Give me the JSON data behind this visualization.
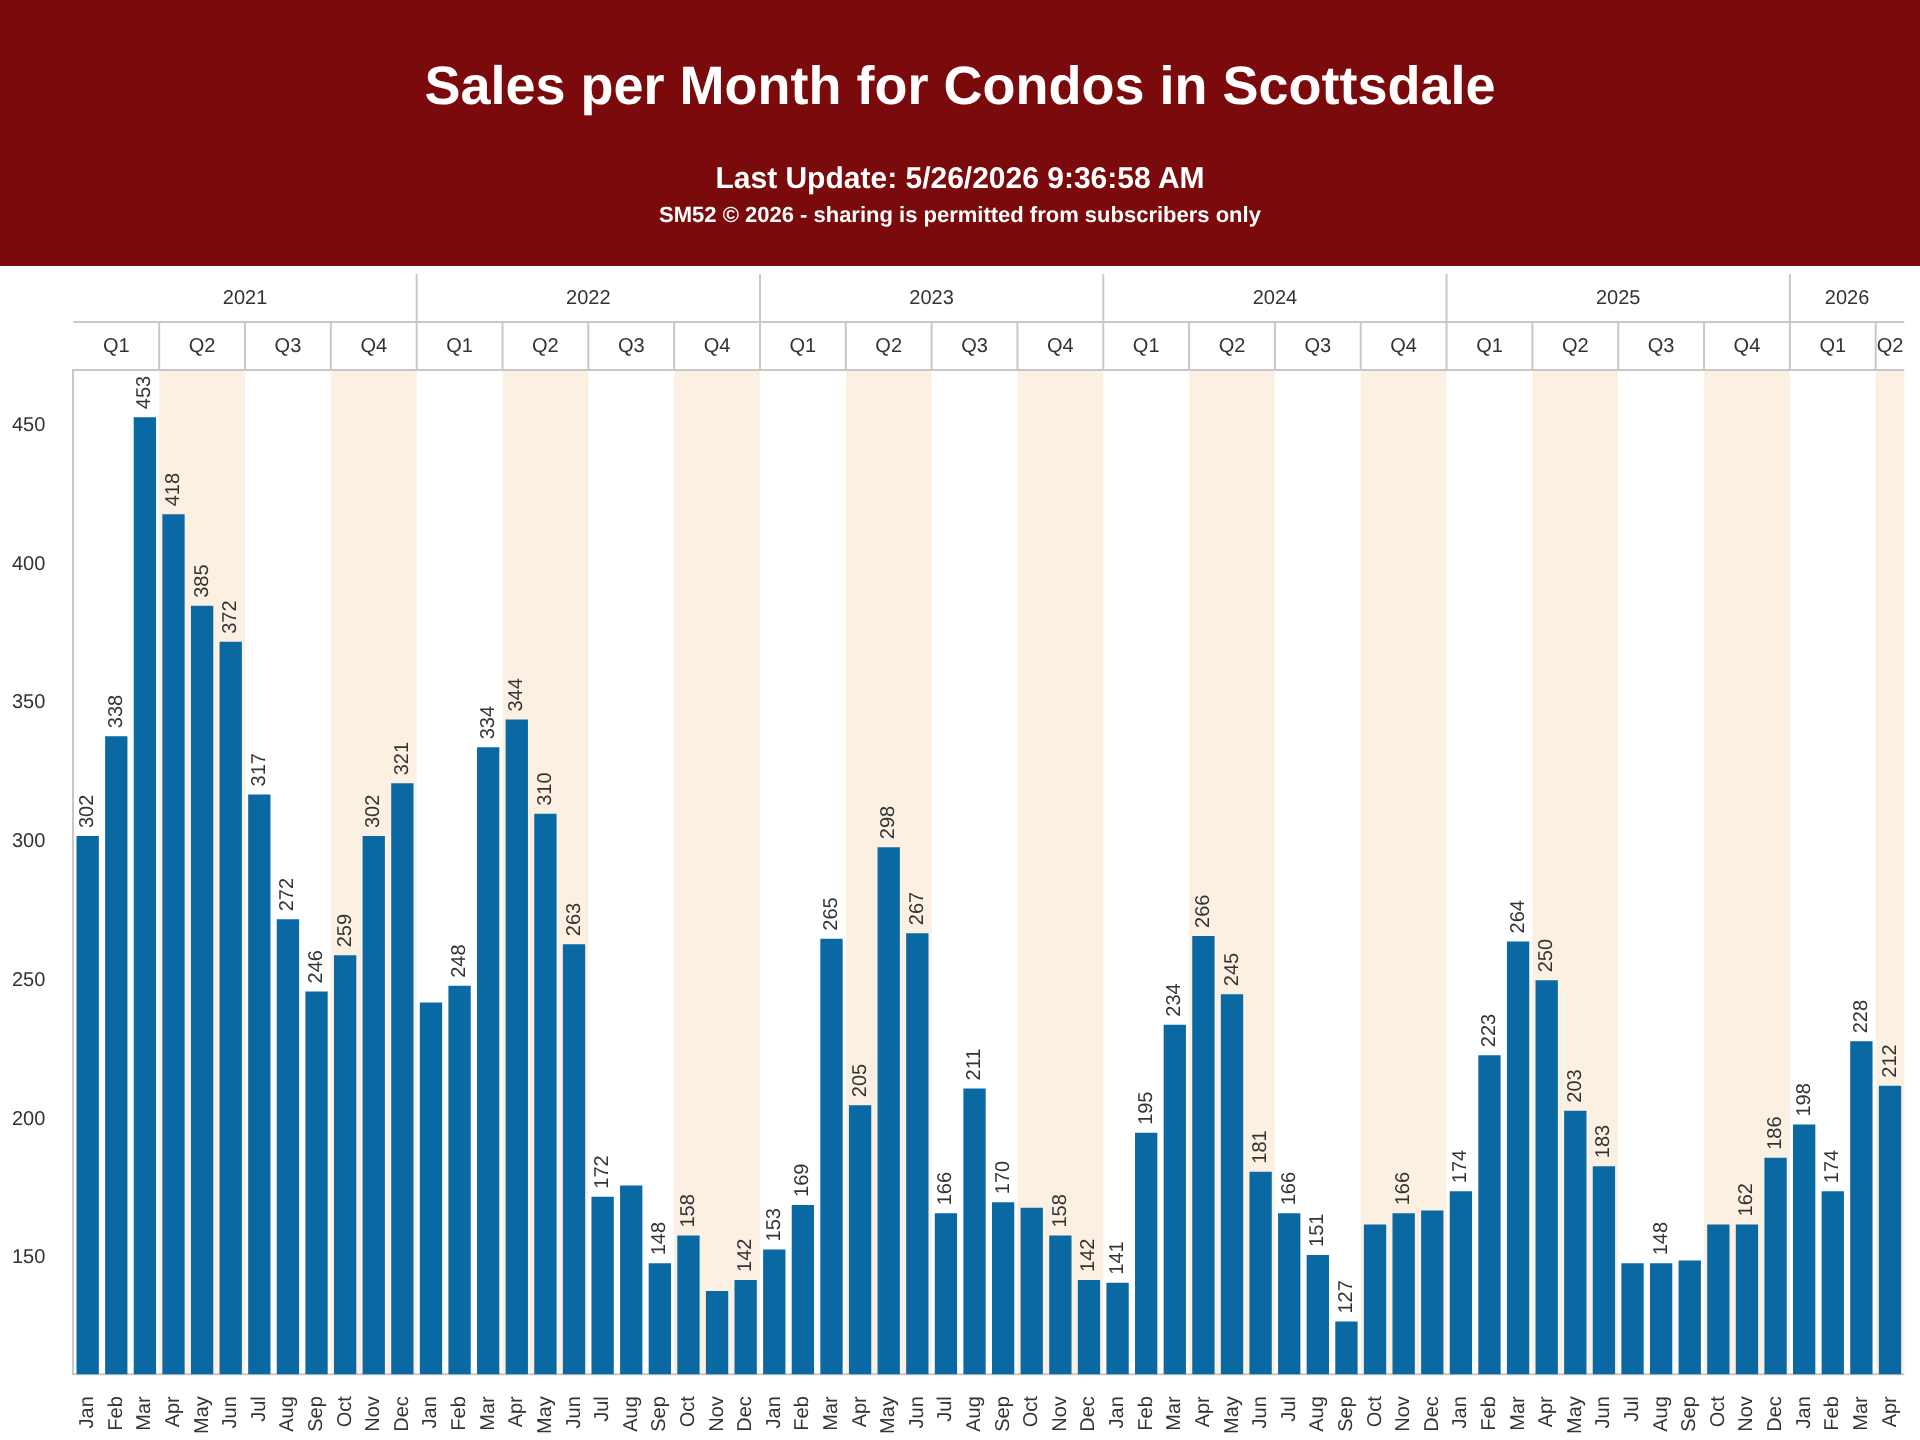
{
  "chart_data": {
    "type": "bar",
    "title": "Sales per Month for Condos in Scottsdale",
    "subtitle": "Last Update: 5/26/2026 9:36:58 AM",
    "annotations": [
      "SM52 © 2026 - sharing is permitted from subscribers only",
      "2021",
      "2022",
      "2023",
      "2024",
      "2025",
      "2026"
    ],
    "x": [
      "2021-01",
      "2021-02",
      "2021-03",
      "2021-04",
      "2021-05",
      "2021-06",
      "2021-07",
      "2021-08",
      "2021-09",
      "2021-10",
      "2021-11",
      "2021-12",
      "2022-01",
      "2022-02",
      "2022-03",
      "2022-04",
      "2022-05",
      "2022-06",
      "2022-07",
      "2022-08",
      "2022-09",
      "2022-10",
      "2022-11",
      "2022-12",
      "2023-01",
      "2023-02",
      "2023-03",
      "2023-04",
      "2023-05",
      "2023-06",
      "2023-07",
      "2023-08",
      "2023-09",
      "2023-10",
      "2023-11",
      "2023-12",
      "2024-01",
      "2024-02",
      "2024-03",
      "2024-04",
      "2024-05",
      "2024-06",
      "2024-07",
      "2024-08",
      "2024-09",
      "2024-10",
      "2024-11",
      "2024-12",
      "2025-01",
      "2025-02",
      "2025-03",
      "2025-04",
      "2025-05",
      "2025-06",
      "2025-07",
      "2025-08",
      "2025-09",
      "2025-10",
      "2025-11",
      "2025-12",
      "2026-01",
      "2026-02",
      "2026-03",
      "2026-04"
    ],
    "values": [
      302,
      338,
      453,
      418,
      385,
      372,
      317,
      272,
      246,
      259,
      302,
      321,
      242,
      248,
      334,
      344,
      310,
      263,
      172,
      176,
      148,
      158,
      138,
      142,
      153,
      169,
      265,
      205,
      298,
      267,
      166,
      211,
      170,
      168,
      158,
      142,
      141,
      195,
      234,
      266,
      245,
      181,
      166,
      151,
      127,
      162,
      166,
      167,
      174,
      223,
      264,
      250,
      203,
      183,
      148,
      148,
      149,
      162,
      162,
      186,
      198,
      174,
      228,
      212
    ],
    "value_labels": [
      "302",
      "338",
      "453",
      "418",
      "385",
      "372",
      "317",
      "272",
      "246",
      "259",
      "302",
      "321",
      null,
      "248",
      "334",
      "344",
      "310",
      "263",
      "172",
      null,
      "148",
      "158",
      null,
      "142",
      "153",
      "169",
      "265",
      "205",
      "298",
      "267",
      "166",
      "211",
      "170",
      null,
      "158",
      "142",
      "141",
      "195",
      "234",
      "266",
      "245",
      "181",
      "166",
      "151",
      "127",
      null,
      "166",
      null,
      "174",
      "223",
      "264",
      "250",
      "203",
      "183",
      null,
      "148",
      null,
      null,
      "162",
      "186",
      "198",
      "174",
      "228",
      "212"
    ],
    "color": "#0a69a3",
    "xlim": [
      "2020-12-16",
      "2026-04-16"
    ],
    "xticks": [
      {
        "value": "2021-01",
        "label": "Jan"
      },
      {
        "value": "2021-02",
        "label": "Feb"
      },
      {
        "value": "2021-03",
        "label": "Mar"
      },
      {
        "value": "2021-04",
        "label": "Apr"
      },
      {
        "value": "2021-05",
        "label": "May"
      },
      {
        "value": "2021-06",
        "label": "Jun"
      },
      {
        "value": "2021-07",
        "label": "Jul"
      },
      {
        "value": "2021-08",
        "label": "Aug"
      },
      {
        "value": "2021-09",
        "label": "Sep"
      },
      {
        "value": "2021-10",
        "label": "Oct"
      },
      {
        "value": "2021-11",
        "label": "Nov"
      },
      {
        "value": "2021-12",
        "label": "Dec"
      },
      {
        "value": "2022-01",
        "label": "Jan"
      },
      {
        "value": "2022-02",
        "label": "Feb"
      },
      {
        "value": "2022-03",
        "label": "Mar"
      },
      {
        "value": "2022-04",
        "label": "Apr"
      },
      {
        "value": "2022-05",
        "label": "May"
      },
      {
        "value": "2022-06",
        "label": "Jun"
      },
      {
        "value": "2022-07",
        "label": "Jul"
      },
      {
        "value": "2022-08",
        "label": "Aug"
      },
      {
        "value": "2022-09",
        "label": "Sep"
      },
      {
        "value": "2022-10",
        "label": "Oct"
      },
      {
        "value": "2022-11",
        "label": "Nov"
      },
      {
        "value": "2022-12",
        "label": "Dec"
      },
      {
        "value": "2023-01",
        "label": "Jan"
      },
      {
        "value": "2023-02",
        "label": "Feb"
      },
      {
        "value": "2023-03",
        "label": "Mar"
      },
      {
        "value": "2023-04",
        "label": "Apr"
      },
      {
        "value": "2023-05",
        "label": "May"
      },
      {
        "value": "2023-06",
        "label": "Jun"
      },
      {
        "value": "2023-07",
        "label": "Jul"
      },
      {
        "value": "2023-08",
        "label": "Aug"
      },
      {
        "value": "2023-09",
        "label": "Sep"
      },
      {
        "value": "2023-10",
        "label": "Oct"
      },
      {
        "value": "2023-11",
        "label": "Nov"
      },
      {
        "value": "2023-12",
        "label": "Dec"
      },
      {
        "value": "2024-01",
        "label": "Jan"
      },
      {
        "value": "2024-02",
        "label": "Feb"
      },
      {
        "value": "2024-03",
        "label": "Mar"
      },
      {
        "value": "2024-04",
        "label": "Apr"
      },
      {
        "value": "2024-05",
        "label": "May"
      },
      {
        "value": "2024-06",
        "label": "Jun"
      },
      {
        "value": "2024-07",
        "label": "Jul"
      },
      {
        "value": "2024-08",
        "label": "Aug"
      },
      {
        "value": "2024-09",
        "label": "Sep"
      },
      {
        "value": "2024-10",
        "label": "Oct"
      },
      {
        "value": "2024-11",
        "label": "Nov"
      },
      {
        "value": "2024-12",
        "label": "Dec"
      },
      {
        "value": "2025-01",
        "label": "Jan"
      },
      {
        "value": "2025-02",
        "label": "Feb"
      },
      {
        "value": "2025-03",
        "label": "Mar"
      },
      {
        "value": "2025-04",
        "label": "Apr"
      },
      {
        "value": "2025-05",
        "label": "May"
      },
      {
        "value": "2025-06",
        "label": "Jun"
      },
      {
        "value": "2025-07",
        "label": "Jul"
      },
      {
        "value": "2025-08",
        "label": "Aug"
      },
      {
        "value": "2025-09",
        "label": "Sep"
      },
      {
        "value": "2025-10",
        "label": "Oct"
      },
      {
        "value": "2025-11",
        "label": "Nov"
      },
      {
        "value": "2025-12",
        "label": "Dec"
      },
      {
        "value": "2026-01",
        "label": "Jan"
      },
      {
        "value": "2026-02",
        "label": "Feb"
      },
      {
        "value": "2026-03",
        "label": "Mar"
      },
      {
        "value": "2026-04",
        "label": "Apr"
      }
    ],
    "x2lim": [
      "2020-12-16",
      "2026-04-16"
    ],
    "x2ticks": [
      {
        "value": "2021-02",
        "label": "Q1"
      },
      {
        "value": "2021-05",
        "label": "Q2"
      },
      {
        "value": "2021-08",
        "label": "Q3"
      },
      {
        "value": "2021-11",
        "label": "Q4"
      },
      {
        "value": "2022-02",
        "label": "Q1"
      },
      {
        "value": "2022-05",
        "label": "Q2"
      },
      {
        "value": "2022-08",
        "label": "Q3"
      },
      {
        "value": "2022-11",
        "label": "Q4"
      },
      {
        "value": "2023-02",
        "label": "Q1"
      },
      {
        "value": "2023-05",
        "label": "Q2"
      },
      {
        "value": "2023-08",
        "label": "Q3"
      },
      {
        "value": "2023-11",
        "label": "Q4"
      },
      {
        "value": "2024-02",
        "label": "Q1"
      },
      {
        "value": "2024-05",
        "label": "Q2"
      },
      {
        "value": "2024-08",
        "label": "Q3"
      },
      {
        "value": "2024-11",
        "label": "Q4"
      },
      {
        "value": "2025-02",
        "label": "Q1"
      },
      {
        "value": "2025-05",
        "label": "Q2"
      },
      {
        "value": "2025-08",
        "label": "Q3"
      },
      {
        "value": "2025-11",
        "label": "Q4"
      },
      {
        "value": "2026-02",
        "label": "Q1"
      },
      {
        "value": "2026-04",
        "label": "Q2"
      }
    ],
    "ylim": [
      108,
      470
    ],
    "yticks": [
      150,
      200,
      250,
      300,
      350,
      400,
      450
    ],
    "grid": false,
    "legend": false,
    "bands": [
      {
        "axis": "x",
        "from": "2021-03-16",
        "to": "2021-06-16",
        "color": "#fcf0e3"
      },
      {
        "axis": "x",
        "from": "2021-09-16",
        "to": "2021-12-16",
        "color": "#fcf0e3"
      },
      {
        "axis": "x",
        "from": "2022-03-16",
        "to": "2022-06-16",
        "color": "#fcf0e3"
      },
      {
        "axis": "x",
        "from": "2022-09-16",
        "to": "2022-12-16",
        "color": "#fcf0e3"
      },
      {
        "axis": "x",
        "from": "2023-03-16",
        "to": "2023-06-16",
        "color": "#fcf0e3"
      },
      {
        "axis": "x",
        "from": "2023-09-16",
        "to": "2023-12-16",
        "color": "#fcf0e3"
      },
      {
        "axis": "x",
        "from": "2024-03-16",
        "to": "2024-06-16",
        "color": "#fcf0e3"
      },
      {
        "axis": "x",
        "from": "2024-09-16",
        "to": "2024-12-16",
        "color": "#fcf0e3"
      },
      {
        "axis": "x",
        "from": "2025-03-16",
        "to": "2025-06-16",
        "color": "#fcf0e3"
      },
      {
        "axis": "x",
        "from": "2025-09-16",
        "to": "2025-12-16",
        "color": "#fcf0e3"
      },
      {
        "axis": "x",
        "from": "2026-03-16",
        "to": "2026-04-16",
        "color": "#fcf0e3"
      }
    ]
  }
}
